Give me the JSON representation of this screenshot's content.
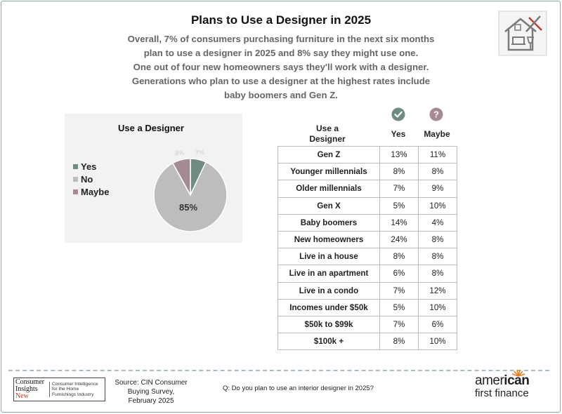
{
  "header": {
    "title": "Plans to Use a Designer in 2025",
    "subtitle_lines": [
      "Overall, 7% of consumers purchasing furniture in the next six months",
      "plan to use a designer in 2025 and 8% say they might use one.",
      "One out of four new homeowners says they'll work with a designer.",
      "Generations who plan to use a designer at the highest rates include",
      "baby boomers and Gen Z."
    ],
    "icon": "house-design-tools-icon"
  },
  "chart_data": [
    {
      "type": "pie",
      "title": "Use a Designer",
      "categories": [
        "Yes",
        "No",
        "Maybe"
      ],
      "values": [
        7,
        85,
        8
      ],
      "data_labels": [
        "7%",
        "85%",
        "8%"
      ],
      "colors": [
        "#6f8c82",
        "#bdbdbd",
        "#a68a92"
      ],
      "legend_position": "left"
    },
    {
      "type": "table",
      "header": {
        "row_label_line1": "Use a",
        "row_label_line2": "Designer",
        "col_yes": "Yes",
        "col_maybe": "Maybe"
      },
      "column_icons": [
        "check-circle-icon",
        "question-circle-icon"
      ],
      "column_icon_colors": [
        "#6f8c82",
        "#a68a92"
      ],
      "rows": [
        {
          "label": "Gen Z",
          "yes": "13%",
          "maybe": "11%"
        },
        {
          "label": "Younger millennials",
          "yes": "8%",
          "maybe": "8%"
        },
        {
          "label": "Older millennials",
          "yes": "7%",
          "maybe": "9%"
        },
        {
          "label": "Gen X",
          "yes": "5%",
          "maybe": "10%"
        },
        {
          "label": "Baby boomers",
          "yes": "14%",
          "maybe": "4%"
        },
        {
          "label": "New homeowners",
          "yes": "24%",
          "maybe": "8%"
        },
        {
          "label": "Live in a house",
          "yes": "8%",
          "maybe": "8%"
        },
        {
          "label": "Live in an apartment",
          "yes": "6%",
          "maybe": "8%"
        },
        {
          "label": "Live in a condo",
          "yes": "7%",
          "maybe": "12%"
        },
        {
          "label": "Incomes under $50k",
          "yes": "5%",
          "maybe": "10%"
        },
        {
          "label": "$50k to $99k",
          "yes": "7%",
          "maybe": "6%"
        },
        {
          "label": "$100k +",
          "yes": "8%",
          "maybe": "10%"
        }
      ]
    }
  ],
  "footer": {
    "cin_logo_words": [
      "Consumer",
      "Insights",
      "New"
    ],
    "cin_logo_tagline": [
      "Consumer Intelligence",
      "for the Home",
      "Furnishings Industry"
    ],
    "source_lines": [
      "Source: CIN Consumer",
      "Buying Survey,",
      "February 2025"
    ],
    "question": "Q: Do you plan to use an interior designer in 2025?",
    "brand_top_regular": "amer",
    "brand_top_bold": "ican",
    "brand_bottom": "first finance"
  }
}
